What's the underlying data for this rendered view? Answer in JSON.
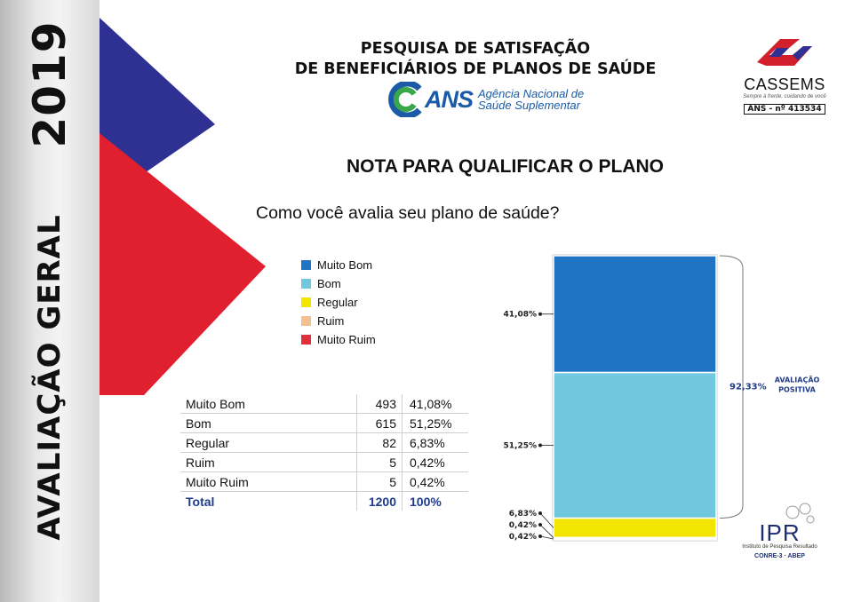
{
  "sidebar": {
    "year": "2019",
    "title": "AVALIAÇÃO GERAL"
  },
  "header": {
    "title_line1": "PESQUISA DE SATISFAÇÃO",
    "title_line2": "DE BENEFICIÁRIOS DE PLANOS DE SAÚDE",
    "ans_word": "ANS",
    "ans_agency_line1": "Agência Nacional de",
    "ans_agency_line2": "Saúde Suplementar"
  },
  "cassems": {
    "name": "CASSEMS",
    "tagline": "Sempre à frente, cuidando de você",
    "registration": "ANS - nº 413534"
  },
  "section_title": "NOTA PARA QUALIFICAR O PLANO",
  "question": "Como você avalia seu plano de saúde?",
  "colors": {
    "muito_bom": "#1f75c4",
    "bom": "#6fc8dd",
    "regular": "#f2e600",
    "ruim": "#f5c08f",
    "muito_ruim": "#e0303a",
    "navy": "#2f3192",
    "red": "#e0202f"
  },
  "legend": [
    {
      "label": "Muito Bom",
      "color": "#1f75c4"
    },
    {
      "label": "Bom",
      "color": "#6fc8dd"
    },
    {
      "label": "Regular",
      "color": "#f2e600"
    },
    {
      "label": "Ruim",
      "color": "#f5c08f"
    },
    {
      "label": "Muito Ruim",
      "color": "#e0303a"
    }
  ],
  "table": {
    "rows": [
      {
        "label": "Muito Bom",
        "count": "493",
        "pct": "41,08%"
      },
      {
        "label": "Bom",
        "count": "615",
        "pct": "51,25%"
      },
      {
        "label": "Regular",
        "count": "82",
        "pct": "6,83%"
      },
      {
        "label": "Ruim",
        "count": "5",
        "pct": "0,42%"
      },
      {
        "label": "Muito Ruim",
        "count": "5",
        "pct": "0,42%"
      }
    ],
    "total": {
      "label": "Total",
      "count": "1200",
      "pct": "100%"
    }
  },
  "chart_data": {
    "type": "bar",
    "stacked": true,
    "categories": [
      "Muito Ruim",
      "Ruim",
      "Regular",
      "Bom",
      "Muito Bom"
    ],
    "values": [
      0.42,
      0.42,
      6.83,
      51.25,
      41.08
    ],
    "value_labels": [
      "0,42%",
      "0,42%",
      "6,83%",
      "51,25%",
      "41,08%"
    ],
    "colors": [
      "#e0303a",
      "#f5c08f",
      "#f2e600",
      "#6fc8dd",
      "#1f75c4"
    ],
    "ylim": [
      0,
      100
    ],
    "bracket_value": "92,33%",
    "bracket_label_line1": "AVALIAÇÃO",
    "bracket_label_line2": "POSITIVA"
  },
  "ipr": {
    "name": "IPR",
    "subtitle": "Instituto de Pesquisa Resultado",
    "orgs": "CONRE-3 · ABEP"
  }
}
